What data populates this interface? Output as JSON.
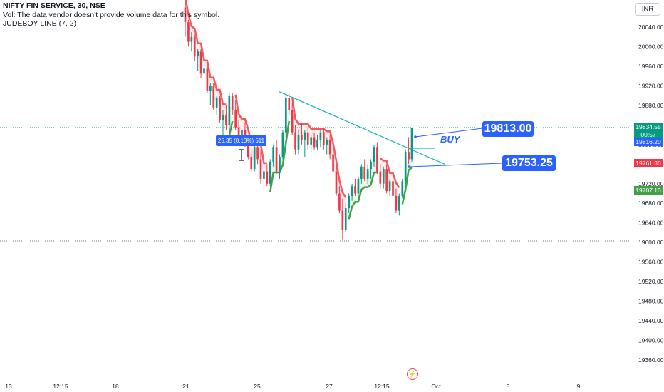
{
  "header": {
    "title": "NIFTY FIN SERVICE, 30, NSE",
    "volume_note": "Vol: The data vendor doesn't provide volume data for this symbol.",
    "indicator": "JUDEBOY LINE (7, 2)"
  },
  "currency_button": "INR",
  "annotations": {
    "callout_upper": "19813.00",
    "callout_lower": "19753.25",
    "buy_label": "BUY",
    "tooltip": "25.35 (0.13%) 511"
  },
  "price_labels": {
    "last_price": "19834.55",
    "countdown": "00:57",
    "blue_level": "19816.20",
    "red_level": "19761.30",
    "green_level": "19707.10"
  },
  "colors": {
    "up": "#089981",
    "down": "#f23645",
    "trail_red": "#f05a5e",
    "trail_green": "#43a047",
    "trendline": "#1fb7b0",
    "accent": "#2962ff"
  },
  "icons": {
    "replay": "flash-icon"
  },
  "chart_data": {
    "type": "candlestick",
    "title": "NIFTY FIN SERVICE, 30, NSE",
    "y_ticks": [
      20040,
      20000,
      19960,
      19920,
      19880,
      19840,
      19800,
      19760,
      19720,
      19680,
      19640,
      19600,
      19560,
      19520,
      19480,
      19440,
      19400,
      19360
    ],
    "ylim": [
      19340,
      20060
    ],
    "x_tick_labels": [
      "13",
      "12:15",
      "18",
      "21",
      "25",
      "27",
      "12:15",
      "Oct",
      "5",
      "9"
    ],
    "grid": false,
    "reference_levels": {
      "last_price": 19834.55,
      "dotted_low": 19603
    },
    "trendline": {
      "start": 19908,
      "end": 19760
    },
    "candles": [
      [
        20080,
        20090,
        20020,
        20050
      ],
      [
        20050,
        20055,
        20000,
        20010
      ],
      [
        20010,
        20030,
        19990,
        20020
      ],
      [
        20020,
        20025,
        19970,
        19980
      ],
      [
        19980,
        19995,
        19950,
        19990
      ],
      [
        19990,
        19995,
        19935,
        19945
      ],
      [
        19945,
        19960,
        19920,
        19955
      ],
      [
        19955,
        19960,
        19905,
        19910
      ],
      [
        19910,
        19925,
        19880,
        19920
      ],
      [
        19920,
        19925,
        19870,
        19875
      ],
      [
        19875,
        19900,
        19860,
        19895
      ],
      [
        19895,
        19900,
        19845,
        19850
      ],
      [
        19850,
        19870,
        19820,
        19860
      ],
      [
        19860,
        19880,
        19830,
        19840
      ],
      [
        19840,
        19905,
        19830,
        19900
      ],
      [
        19900,
        19905,
        19860,
        19870
      ],
      [
        19870,
        19890,
        19830,
        19835
      ],
      [
        19835,
        19850,
        19800,
        19810
      ],
      [
        19810,
        19840,
        19790,
        19830
      ],
      [
        19830,
        19845,
        19795,
        19800
      ],
      [
        19800,
        19820,
        19770,
        19775
      ],
      [
        19775,
        19790,
        19745,
        19750
      ],
      [
        19750,
        19800,
        19745,
        19795
      ],
      [
        19795,
        19805,
        19760,
        19770
      ],
      [
        19770,
        19790,
        19720,
        19730
      ],
      [
        19730,
        19750,
        19705,
        19745
      ],
      [
        19745,
        19760,
        19715,
        19720
      ],
      [
        19720,
        19770,
        19715,
        19765
      ],
      [
        19765,
        19800,
        19755,
        19795
      ],
      [
        19795,
        19810,
        19740,
        19745
      ],
      [
        19745,
        19780,
        19730,
        19775
      ],
      [
        19775,
        19830,
        19770,
        19825
      ],
      [
        19825,
        19900,
        19815,
        19895
      ],
      [
        19895,
        19905,
        19860,
        19870
      ],
      [
        19870,
        19885,
        19820,
        19825
      ],
      [
        19825,
        19840,
        19780,
        19790
      ],
      [
        19790,
        19830,
        19780,
        19820
      ],
      [
        19820,
        19845,
        19800,
        19810
      ],
      [
        19810,
        19830,
        19775,
        19825
      ],
      [
        19825,
        19835,
        19790,
        19800
      ],
      [
        19800,
        19820,
        19785,
        19815
      ],
      [
        19815,
        19825,
        19790,
        19795
      ],
      [
        19795,
        19820,
        19790,
        19810
      ],
      [
        19810,
        19830,
        19795,
        19825
      ],
      [
        19825,
        19835,
        19790,
        19800
      ],
      [
        19800,
        19815,
        19780,
        19810
      ],
      [
        19810,
        19820,
        19770,
        19780
      ],
      [
        19780,
        19790,
        19740,
        19745
      ],
      [
        19745,
        19755,
        19695,
        19700
      ],
      [
        19700,
        19715,
        19660,
        19665
      ],
      [
        19665,
        19690,
        19605,
        19625
      ],
      [
        19625,
        19680,
        19620,
        19670
      ],
      [
        19670,
        19700,
        19660,
        19695
      ],
      [
        19695,
        19720,
        19685,
        19715
      ],
      [
        19715,
        19730,
        19695,
        19700
      ],
      [
        19700,
        19735,
        19690,
        19730
      ],
      [
        19730,
        19760,
        19720,
        19755
      ],
      [
        19755,
        19770,
        19725,
        19730
      ],
      [
        19730,
        19760,
        19720,
        19750
      ],
      [
        19750,
        19770,
        19730,
        19765
      ],
      [
        19765,
        19800,
        19755,
        19795
      ],
      [
        19795,
        19805,
        19740,
        19745
      ],
      [
        19745,
        19760,
        19710,
        19720
      ],
      [
        19720,
        19755,
        19710,
        19750
      ],
      [
        19750,
        19760,
        19700,
        19705
      ],
      [
        19705,
        19730,
        19695,
        19725
      ],
      [
        19725,
        19740,
        19690,
        19695
      ],
      [
        19695,
        19710,
        19660,
        19665
      ],
      [
        19665,
        19700,
        19655,
        19695
      ],
      [
        19695,
        19730,
        19690,
        19725
      ],
      [
        19725,
        19790,
        19720,
        19785
      ],
      [
        19785,
        19815,
        19760,
        19770
      ],
      [
        19770,
        19835,
        19765,
        19834.55
      ]
    ]
  }
}
